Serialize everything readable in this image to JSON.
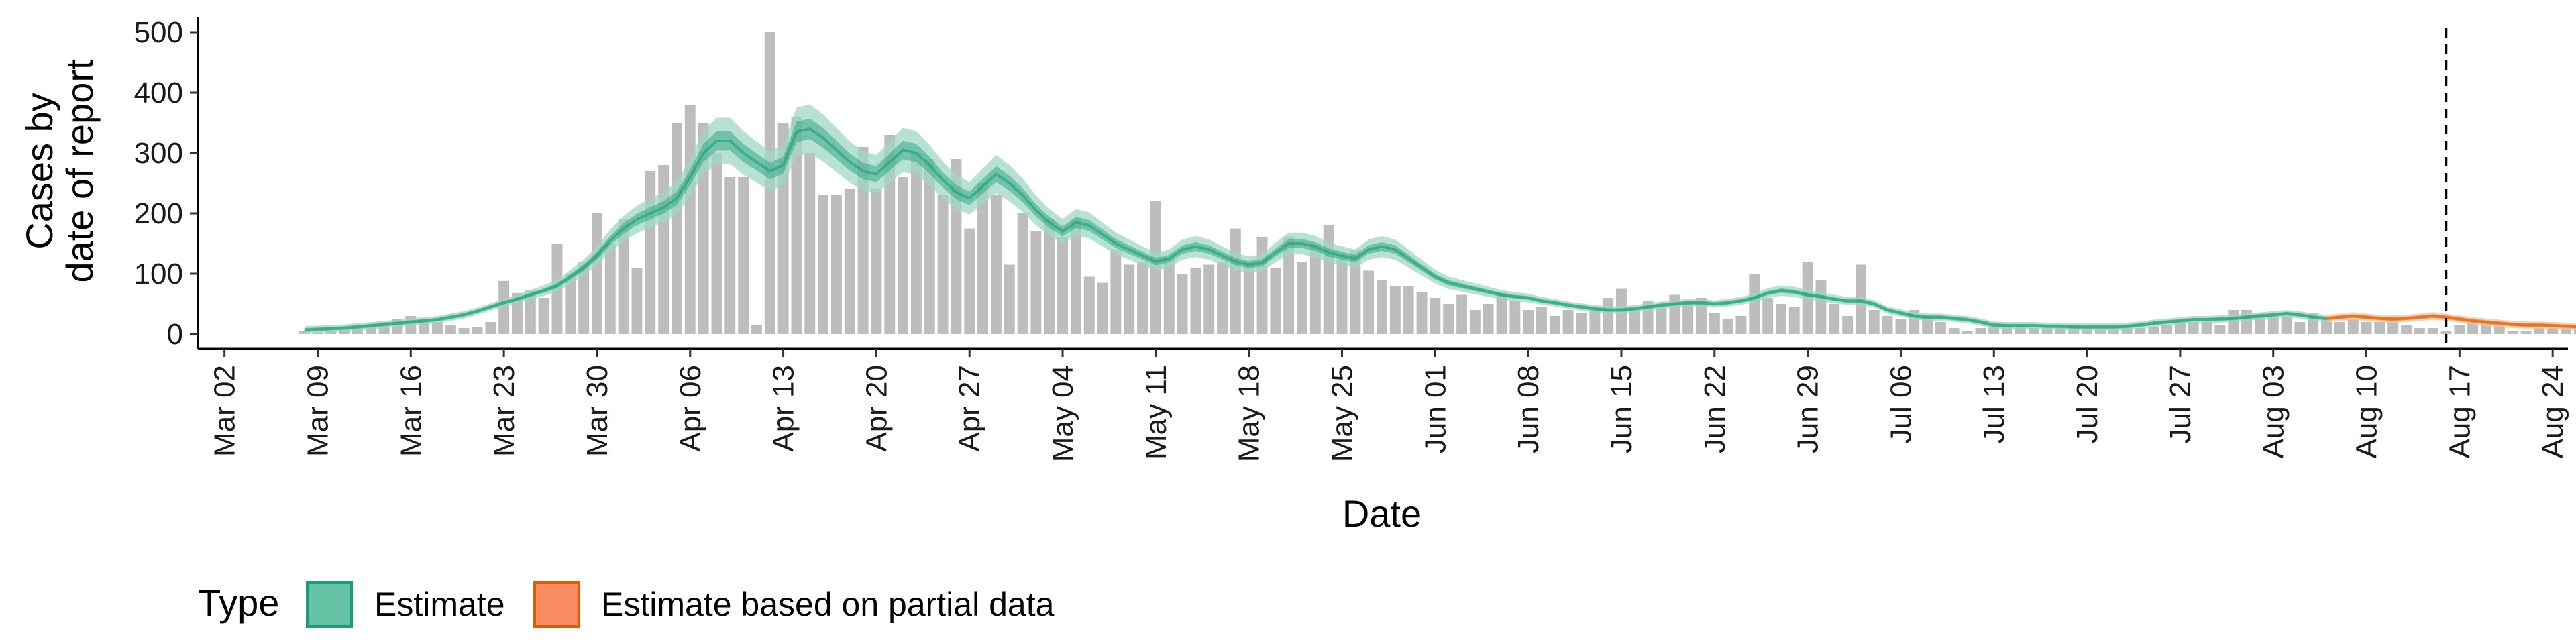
{
  "chart_data": {
    "type": "bar",
    "xlabel": "Date",
    "ylabel_lines": [
      "Cases by",
      "date of report"
    ],
    "ylim": [
      0,
      520
    ],
    "y_ticks": [
      0,
      100,
      200,
      300,
      400,
      500
    ],
    "x_start": "2020-02-29",
    "x_end": "2020-08-25",
    "x_ticks": [
      {
        "label": "Mar 02",
        "date": "2020-03-02"
      },
      {
        "label": "Mar 09",
        "date": "2020-03-09"
      },
      {
        "label": "Mar 16",
        "date": "2020-03-16"
      },
      {
        "label": "Mar 23",
        "date": "2020-03-23"
      },
      {
        "label": "Mar 30",
        "date": "2020-03-30"
      },
      {
        "label": "Apr 06",
        "date": "2020-04-06"
      },
      {
        "label": "Apr 13",
        "date": "2020-04-13"
      },
      {
        "label": "Apr 20",
        "date": "2020-04-20"
      },
      {
        "label": "Apr 27",
        "date": "2020-04-27"
      },
      {
        "label": "May 04",
        "date": "2020-05-04"
      },
      {
        "label": "May 11",
        "date": "2020-05-11"
      },
      {
        "label": "May 18",
        "date": "2020-05-18"
      },
      {
        "label": "May 25",
        "date": "2020-05-25"
      },
      {
        "label": "Jun 01",
        "date": "2020-06-01"
      },
      {
        "label": "Jun 08",
        "date": "2020-06-08"
      },
      {
        "label": "Jun 15",
        "date": "2020-06-15"
      },
      {
        "label": "Jun 22",
        "date": "2020-06-22"
      },
      {
        "label": "Jun 29",
        "date": "2020-06-29"
      },
      {
        "label": "Jul 06",
        "date": "2020-07-06"
      },
      {
        "label": "Jul 13",
        "date": "2020-07-13"
      },
      {
        "label": "Jul 20",
        "date": "2020-07-20"
      },
      {
        "label": "Jul 27",
        "date": "2020-07-27"
      },
      {
        "label": "Aug 03",
        "date": "2020-08-03"
      },
      {
        "label": "Aug 10",
        "date": "2020-08-10"
      },
      {
        "label": "Aug 17",
        "date": "2020-08-17"
      },
      {
        "label": "Aug 24",
        "date": "2020-08-24"
      }
    ],
    "reference_line_date": "2020-08-16",
    "partial_data_start": "2020-08-07",
    "first_date": "2020-03-08",
    "reported_cases": [
      5,
      3,
      5,
      8,
      10,
      15,
      20,
      25,
      30,
      25,
      20,
      15,
      10,
      12,
      20,
      88,
      68,
      72,
      60,
      150,
      100,
      120,
      200,
      150,
      190,
      110,
      270,
      280,
      350,
      380,
      350,
      300,
      260,
      260,
      15,
      500,
      350,
      360,
      300,
      230,
      230,
      240,
      310,
      240,
      330,
      260,
      300,
      290,
      230,
      290,
      175,
      250,
      230,
      115,
      200,
      170,
      190,
      160,
      190,
      95,
      85,
      140,
      115,
      120,
      220,
      125,
      100,
      110,
      115,
      120,
      175,
      120,
      160,
      110,
      160,
      120,
      150,
      180,
      130,
      140,
      105,
      90,
      80,
      80,
      70,
      60,
      50,
      65,
      40,
      50,
      70,
      55,
      40,
      45,
      30,
      40,
      35,
      40,
      60,
      75,
      40,
      55,
      50,
      65,
      55,
      60,
      35,
      25,
      30,
      100,
      60,
      50,
      45,
      120,
      90,
      50,
      30,
      115,
      40,
      30,
      25,
      40,
      30,
      20,
      10,
      5,
      10,
      15,
      15,
      12,
      10,
      10,
      12,
      15,
      12,
      10,
      12,
      15,
      10,
      12,
      15,
      18,
      20,
      20,
      15,
      40,
      40,
      35,
      30,
      30,
      20,
      35,
      25,
      20,
      25,
      20,
      20,
      25,
      15,
      10,
      10,
      5,
      15,
      20,
      20,
      15,
      5,
      5,
      10,
      10,
      10,
      15,
      20,
      20,
      10,
      10
    ],
    "estimate_median": [
      7,
      8,
      9,
      10,
      12,
      14,
      16,
      18,
      20,
      22,
      24,
      28,
      32,
      38,
      45,
      52,
      58,
      65,
      72,
      80,
      95,
      110,
      130,
      155,
      175,
      190,
      200,
      210,
      225,
      260,
      300,
      320,
      320,
      300,
      285,
      270,
      280,
      335,
      340,
      325,
      305,
      285,
      270,
      265,
      285,
      305,
      300,
      280,
      255,
      235,
      225,
      245,
      265,
      250,
      230,
      205,
      185,
      170,
      185,
      180,
      165,
      150,
      140,
      130,
      120,
      125,
      140,
      145,
      140,
      130,
      120,
      115,
      118,
      135,
      150,
      150,
      145,
      135,
      130,
      125,
      140,
      145,
      140,
      125,
      110,
      95,
      85,
      80,
      75,
      70,
      65,
      62,
      60,
      55,
      52,
      48,
      45,
      42,
      40,
      40,
      42,
      45,
      48,
      50,
      52,
      52,
      50,
      52,
      55,
      60,
      68,
      72,
      70,
      65,
      62,
      58,
      55,
      55,
      50,
      40,
      35,
      30,
      28,
      28,
      26,
      24,
      20,
      15,
      14,
      14,
      14,
      13,
      13,
      12,
      12,
      12,
      12,
      13,
      15,
      18,
      20,
      22,
      24,
      24,
      25,
      26,
      28,
      30,
      32,
      34,
      32,
      28,
      26,
      28,
      30,
      28,
      26,
      25,
      26,
      28,
      30,
      28,
      25,
      22,
      20,
      18,
      16,
      15,
      15,
      14,
      13,
      12,
      12,
      13,
      14,
      16,
      18
    ],
    "estimate_partial_from_index": 152,
    "colors": {
      "bars": "#bdbdbd",
      "estimate": "#1b9e77",
      "estimate_light": "#9fd8c4",
      "estimate_swatch": "#66c2a5",
      "partial": "#d95f02",
      "partial_light": "#f5c39a",
      "partial_swatch": "#fc8d62"
    },
    "legend": {
      "title": "Type",
      "items": [
        {
          "label": "Estimate",
          "color_key": "estimate"
        },
        {
          "label": "Estimate based on partial data",
          "color_key": "partial"
        }
      ]
    }
  }
}
